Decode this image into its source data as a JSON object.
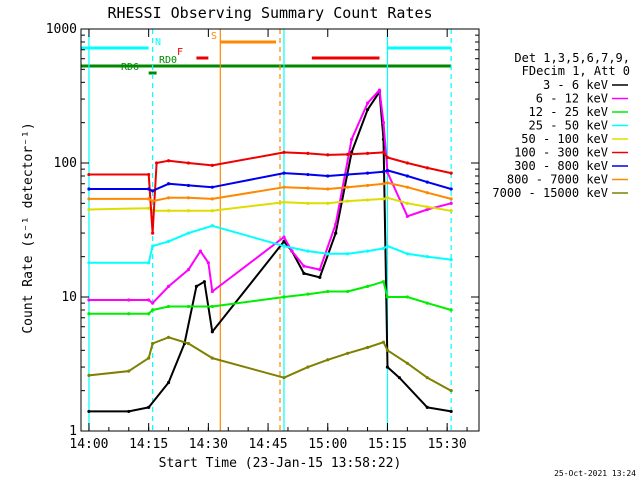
{
  "chart_data": {
    "type": "line",
    "title": "RHESSI Observing Summary Count Rates",
    "xlabel": "Start Time (23-Jan-15 13:58:22)",
    "ylabel": "Count Rate (s⁻¹ detector⁻¹)",
    "yscale": "log",
    "xlim": [
      "13:58",
      "15:38"
    ],
    "ylim": [
      1,
      1000
    ],
    "x_ticks": [
      "14:00",
      "14:15",
      "14:30",
      "14:45",
      "15:00",
      "15:15",
      "15:30"
    ],
    "y_ticks": [
      "1",
      "10",
      "100",
      "1000"
    ],
    "legend_header": [
      "Det 1,3,5,6,7,9,",
      "FDecim 1, Att 0"
    ],
    "legend_position": "right",
    "timestamp": "25-Oct-2021 13:24",
    "series": [
      {
        "name": "3 - 6 keV",
        "color": "#000000",
        "x": [
          "14:00",
          "14:10",
          "14:15",
          "14:20",
          "14:24",
          "14:27",
          "14:29",
          "14:31",
          "14:49",
          "14:51",
          "14:54",
          "14:58",
          "15:02",
          "15:06",
          "15:10",
          "15:13",
          "15:14",
          "15:15",
          "15:18",
          "15:25",
          "15:31"
        ],
        "y": [
          1.4,
          1.4,
          1.5,
          2.3,
          4.5,
          12,
          13,
          5.5,
          26,
          22,
          15,
          14,
          30,
          120,
          250,
          340,
          150,
          3,
          2.5,
          1.5,
          1.4
        ]
      },
      {
        "name": "6 - 12 keV",
        "color": "#ff00ff",
        "x": [
          "14:00",
          "14:10",
          "14:15",
          "14:16",
          "14:20",
          "14:25",
          "14:28",
          "14:30",
          "14:31",
          "14:49",
          "14:51",
          "14:54",
          "14:58",
          "15:02",
          "15:06",
          "15:10",
          "15:13",
          "15:14",
          "15:15",
          "15:20",
          "15:25",
          "15:31"
        ],
        "y": [
          9.5,
          9.5,
          9.5,
          9,
          12,
          16,
          22,
          18,
          11,
          28,
          22,
          17,
          16,
          35,
          150,
          280,
          350,
          200,
          85,
          40,
          45,
          50
        ]
      },
      {
        "name": "12 - 25 keV",
        "color": "#00ee00",
        "x": [
          "14:00",
          "14:10",
          "14:15",
          "14:16",
          "14:20",
          "14:25",
          "14:31",
          "14:49",
          "14:55",
          "15:00",
          "15:05",
          "15:10",
          "15:14",
          "15:15",
          "15:20",
          "15:25",
          "15:31"
        ],
        "y": [
          7.5,
          7.5,
          7.5,
          8,
          8.5,
          8.5,
          8.5,
          10,
          10.5,
          11,
          11,
          12,
          13,
          10,
          10,
          9,
          8
        ]
      },
      {
        "name": "25 - 50 keV",
        "color": "#00ffff",
        "x": [
          "14:00",
          "14:15",
          "14:16",
          "14:20",
          "14:25",
          "14:31",
          "14:49",
          "14:55",
          "15:00",
          "15:05",
          "15:10",
          "15:14",
          "15:15",
          "15:20",
          "15:25",
          "15:31"
        ],
        "y": [
          18,
          18,
          24,
          26,
          30,
          34,
          24,
          22,
          21,
          21,
          22,
          23,
          24,
          21,
          20,
          19
        ]
      },
      {
        "name": "50 - 100 keV",
        "color": "#dddd00",
        "x": [
          "14:00",
          "14:15",
          "14:16",
          "14:20",
          "14:25",
          "14:31",
          "14:49",
          "14:55",
          "15:00",
          "15:05",
          "15:10",
          "15:14",
          "15:15",
          "15:20",
          "15:25",
          "15:31"
        ],
        "y": [
          45,
          46,
          44,
          44,
          44,
          44,
          51,
          50,
          50,
          52,
          53,
          54,
          55,
          50,
          47,
          44
        ]
      },
      {
        "name": "100 - 300 keV",
        "color": "#ee0000",
        "x": [
          "14:00",
          "14:15",
          "14:16",
          "14:17",
          "14:20",
          "14:25",
          "14:31",
          "14:49",
          "14:55",
          "15:00",
          "15:05",
          "15:10",
          "15:14",
          "15:15",
          "15:20",
          "15:25",
          "15:31"
        ],
        "y": [
          82,
          82,
          30,
          100,
          104,
          100,
          96,
          120,
          118,
          115,
          116,
          118,
          120,
          110,
          100,
          92,
          84
        ]
      },
      {
        "name": "300 - 800 keV",
        "color": "#0000ee",
        "x": [
          "14:00",
          "14:15",
          "14:16",
          "14:20",
          "14:25",
          "14:31",
          "14:49",
          "14:55",
          "15:00",
          "15:05",
          "15:10",
          "15:14",
          "15:15",
          "15:20",
          "15:25",
          "15:31"
        ],
        "y": [
          64,
          64,
          62,
          70,
          68,
          66,
          84,
          82,
          80,
          82,
          84,
          86,
          88,
          80,
          72,
          64
        ]
      },
      {
        "name": "800 - 7000 keV",
        "color": "#ff8800",
        "x": [
          "14:00",
          "14:15",
          "14:16",
          "14:20",
          "14:25",
          "14:31",
          "14:49",
          "14:55",
          "15:00",
          "15:05",
          "15:10",
          "15:14",
          "15:15",
          "15:20",
          "15:25",
          "15:31"
        ],
        "y": [
          54,
          54,
          52,
          55,
          55,
          54,
          66,
          65,
          64,
          66,
          68,
          70,
          71,
          66,
          60,
          54
        ]
      },
      {
        "name": "7000 - 15000 keV",
        "color": "#808000",
        "x": [
          "14:00",
          "14:10",
          "14:15",
          "14:16",
          "14:20",
          "14:25",
          "14:31",
          "14:49",
          "14:55",
          "15:00",
          "15:05",
          "15:10",
          "15:14",
          "15:15",
          "15:20",
          "15:25",
          "15:31"
        ],
        "y": [
          2.6,
          2.8,
          3.5,
          4.5,
          5,
          4.5,
          3.5,
          2.5,
          3,
          3.4,
          3.8,
          4.2,
          4.6,
          4,
          3.2,
          2.5,
          2
        ]
      }
    ],
    "flag_bars": [
      {
        "label": "N",
        "color": "#00ffff",
        "segments": [
          [
            "13:58",
            "14:15"
          ],
          [
            "15:15",
            "15:31"
          ]
        ]
      },
      {
        "label": "S",
        "color": "#ff8800",
        "segments": [
          [
            "14:33",
            "14:47"
          ]
        ]
      },
      {
        "label": "F",
        "color": "#ee0000",
        "segments": [
          [
            "14:27",
            "14:30"
          ],
          [
            "14:56",
            "15:13"
          ]
        ]
      },
      {
        "label": "RD0",
        "color": "#008800",
        "segments": [
          [
            "13:58",
            "15:31"
          ]
        ]
      },
      {
        "label": "RD6",
        "color": "#008800",
        "segments": [
          [
            "14:15",
            "14:17"
          ]
        ]
      }
    ],
    "vertical_markers": [
      {
        "x": "14:00",
        "color": "#00ffff",
        "style": "solid"
      },
      {
        "x": "14:16",
        "color": "#00ffff",
        "style": "dashed"
      },
      {
        "x": "14:33",
        "color": "#ff8800",
        "style": "solid"
      },
      {
        "x": "14:48",
        "color": "#ff8800",
        "style": "dashed"
      },
      {
        "x": "14:49",
        "color": "#00ffff",
        "style": "solid"
      },
      {
        "x": "15:15",
        "color": "#00ffff",
        "style": "solid"
      },
      {
        "x": "15:31",
        "color": "#00ffff",
        "style": "dashed"
      }
    ]
  }
}
